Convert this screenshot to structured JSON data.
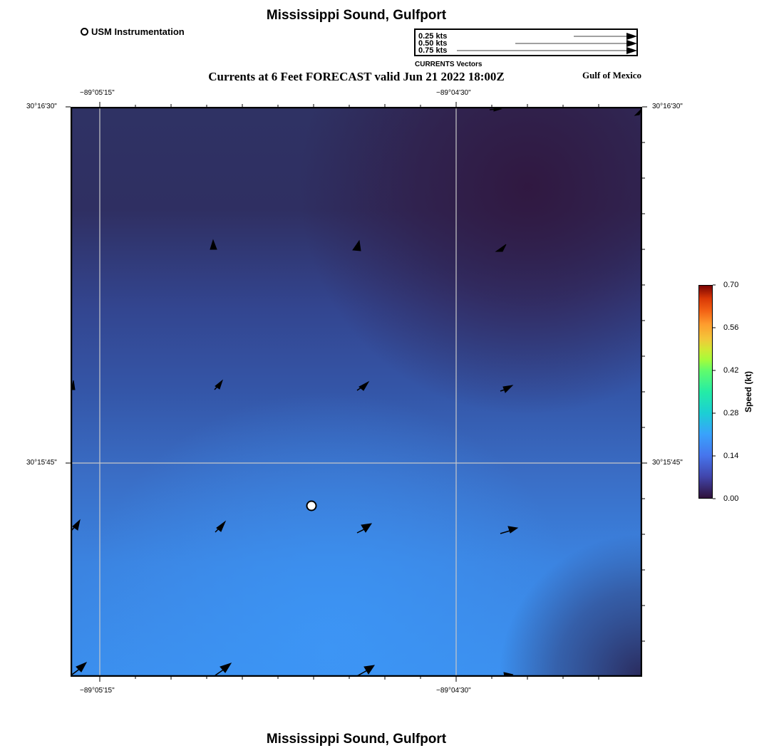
{
  "header": {
    "title": "Mississippi Sound, Gulfport",
    "forecast": "Currents at 6 Feet FORECAST valid Jun 21 2022 18:00Z",
    "region": "Gulf of Mexico",
    "footer_title": "Mississippi Sound, Gulfport"
  },
  "instrument_legend": {
    "label": "USM Instrumentation"
  },
  "vector_legend": {
    "rows": [
      "0.25 kts",
      "0.50 kts",
      "0.75 kts"
    ],
    "caption": "CURRENTS Vectors"
  },
  "axes": {
    "lon_labels": [
      "−89°05'15\"",
      "−89°04'30\""
    ],
    "lat_labels": [
      "30°16'30\"",
      "30°15'45\""
    ]
  },
  "colorbar": {
    "title": "Speed (kt)",
    "ticks": [
      "0.70",
      "0.56",
      "0.42",
      "0.28",
      "0.14",
      "0.00"
    ]
  },
  "colors": {
    "frame": "#000000",
    "grid": "#c8c8c8",
    "low_speed": "#30123b",
    "mid_speed": "#3f93ef"
  }
}
